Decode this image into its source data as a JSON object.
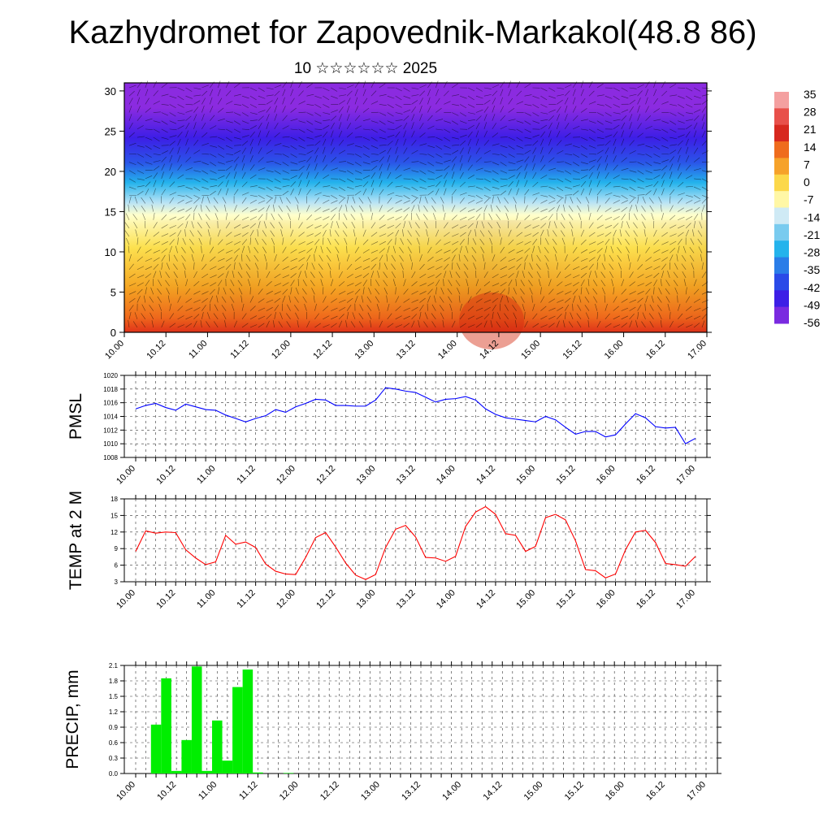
{
  "title": "Kazhydromet for Zapovednik-Markakol(48.8 86)",
  "subtitle": "10 ☆☆☆☆☆☆ 2025",
  "chart_data": [
    {
      "type": "heatmap",
      "name": "cross-section",
      "x_tick_labels": [
        "10.00",
        "10.12",
        "11.00",
        "11.12",
        "12.00",
        "12.12",
        "13.00",
        "13.12",
        "14.00",
        "14.12",
        "15.00",
        "15.12",
        "16.00",
        "16.12",
        "17.00"
      ],
      "y_ticks": [
        0,
        5,
        10,
        15,
        20,
        25,
        30
      ],
      "ylim": [
        0,
        31
      ],
      "colorbar_labels": [
        "35",
        "28",
        "21",
        "14",
        "7",
        "0",
        "-7",
        "-14",
        "-21",
        "-28",
        "-35",
        "-42",
        "-49",
        "-56"
      ],
      "colors": {
        "warm_max": "#e0321a",
        "warm": "#f5a623",
        "zero": "#fde24f",
        "cool": "#ffffcc",
        "ice": "#b9e3f5",
        "cyan": "#24b3ec",
        "blue": "#2a55e8",
        "deep_blue": "#3d1ee6",
        "violet": "#8b2be0"
      }
    },
    {
      "type": "line",
      "ylabel": "PMSL",
      "ylim": [
        1008,
        1020
      ],
      "y_ticks": [
        1008,
        1010,
        1012,
        1014,
        1016,
        1018,
        1020
      ],
      "x_tick_labels": [
        "10.00",
        "10.12",
        "11.00",
        "11.12",
        "12.00",
        "12.12",
        "13.00",
        "13.12",
        "14.00",
        "14.12",
        "15.00",
        "15.12",
        "16.00",
        "16.12",
        "17.00"
      ],
      "color": "#0000ff",
      "values": [
        1015.1,
        1015.6,
        1015.9,
        1015.3,
        1014.9,
        1015.8,
        1015.4,
        1015.0,
        1014.9,
        1014.2,
        1013.7,
        1013.2,
        1013.7,
        1014.1,
        1015.0,
        1014.6,
        1015.4,
        1015.9,
        1016.5,
        1016.4,
        1015.6,
        1015.6,
        1015.5,
        1015.5,
        1016.4,
        1018.2,
        1018.0,
        1017.7,
        1017.5,
        1016.8,
        1016.1,
        1016.5,
        1016.6,
        1016.9,
        1016.4,
        1015.1,
        1014.3,
        1013.8,
        1013.6,
        1013.4,
        1013.2,
        1014.0,
        1013.5,
        1012.4,
        1011.4,
        1011.8,
        1011.8,
        1011.0,
        1011.3,
        1012.9,
        1014.4,
        1013.8,
        1012.5,
        1012.3,
        1012.4,
        1010.0,
        1010.8
      ]
    },
    {
      "type": "line",
      "ylabel": "TEMP at 2 M",
      "ylim": [
        3,
        18
      ],
      "y_ticks": [
        3,
        6,
        9,
        12,
        15,
        18
      ],
      "x_tick_labels": [
        "10.00",
        "10.12",
        "11.00",
        "11.12",
        "12.00",
        "12.12",
        "13.00",
        "13.12",
        "14.00",
        "14.12",
        "15.00",
        "15.12",
        "16.00",
        "16.12",
        "17.00"
      ],
      "color": "#ff0000",
      "values": [
        8.5,
        12.2,
        11.8,
        12.0,
        11.9,
        8.8,
        7.3,
        6.1,
        6.6,
        11.4,
        9.8,
        10.2,
        9.2,
        6.2,
        4.9,
        4.4,
        4.3,
        7.4,
        11.0,
        11.9,
        9.3,
        6.4,
        4.2,
        3.4,
        4.3,
        9.2,
        12.5,
        13.2,
        11.1,
        7.4,
        7.3,
        6.7,
        7.6,
        13.0,
        15.6,
        16.6,
        15.2,
        11.7,
        11.4,
        8.5,
        9.4,
        14.6,
        15.2,
        14.2,
        10.4,
        5.2,
        5.0,
        3.7,
        4.4,
        8.8,
        12.0,
        12.3,
        10.1,
        6.3,
        6.1,
        5.8,
        7.6
      ]
    },
    {
      "type": "bar",
      "ylabel": "PRECIP, mm",
      "ylim": [
        0,
        2.1
      ],
      "y_tick_labels": [
        "0.0",
        "0.3",
        "0.6",
        "0.9",
        "1.2",
        "1.5",
        "1.8",
        "2.1"
      ],
      "x_tick_labels": [
        "10.00",
        "10.12",
        "11.00",
        "11.12",
        "12.00",
        "12.12",
        "13.00",
        "13.12",
        "14.00",
        "14.12",
        "15.00",
        "15.12",
        "16.00",
        "16.12",
        "17.00"
      ],
      "color": "#00ee00",
      "values": [
        0,
        0,
        0.95,
        1.85,
        0.05,
        0.65,
        2.08,
        0.05,
        1.03,
        0.25,
        1.68,
        2.02,
        0.02,
        0,
        0,
        0.01,
        0,
        0,
        0,
        0,
        0,
        0,
        0,
        0,
        0,
        0,
        0,
        0,
        0,
        0,
        0,
        0,
        0,
        0,
        0,
        0,
        0,
        0,
        0,
        0,
        0,
        0,
        0,
        0,
        0,
        0,
        0,
        0,
        0,
        0,
        0,
        0,
        0,
        0,
        0,
        0,
        0
      ]
    }
  ]
}
